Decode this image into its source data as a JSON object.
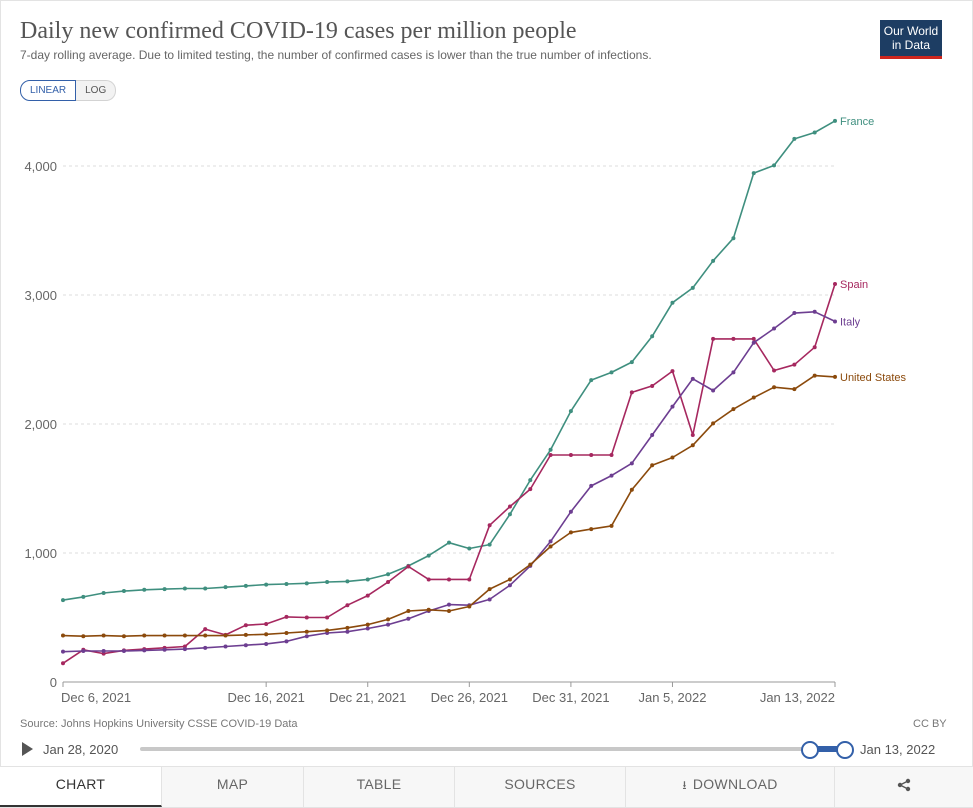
{
  "header": {
    "title": "Daily new confirmed COVID-19 cases per million people",
    "subtitle": "7-day rolling average. Due to limited testing, the number of confirmed cases is lower than the true number of infections.",
    "logo_line1": "Our World",
    "logo_line2": "in Data"
  },
  "scale_toggle": {
    "linear": "LINEAR",
    "log": "LOG",
    "selected": "LINEAR"
  },
  "chart_data": {
    "type": "line",
    "title": "Daily new confirmed COVID-19 cases per million people",
    "xlabel": "",
    "ylabel": "",
    "ylim": [
      0,
      4300
    ],
    "yticks": [
      0,
      1000,
      2000,
      3000,
      4000
    ],
    "ytick_labels": [
      "0",
      "1,000",
      "2,000",
      "3,000",
      "4,000"
    ],
    "x": [
      "Dec 6, 2021",
      "Dec 7",
      "Dec 8",
      "Dec 9",
      "Dec 10",
      "Dec 11",
      "Dec 12",
      "Dec 13",
      "Dec 14",
      "Dec 15",
      "Dec 16",
      "Dec 17",
      "Dec 18",
      "Dec 19",
      "Dec 20",
      "Dec 21",
      "Dec 22",
      "Dec 23",
      "Dec 24",
      "Dec 25",
      "Dec 26",
      "Dec 27",
      "Dec 28",
      "Dec 29",
      "Dec 30",
      "Dec 31",
      "Jan 1",
      "Jan 2",
      "Jan 3",
      "Jan 4",
      "Jan 5",
      "Jan 6",
      "Jan 7",
      "Jan 8",
      "Jan 9",
      "Jan 10",
      "Jan 11",
      "Jan 12",
      "Jan 13, 2022"
    ],
    "xtick_labels": [
      {
        "index": 0,
        "label": "Dec 6, 2021"
      },
      {
        "index": 10,
        "label": "Dec 16, 2021"
      },
      {
        "index": 15,
        "label": "Dec 21, 2021"
      },
      {
        "index": 20,
        "label": "Dec 26, 2021"
      },
      {
        "index": 25,
        "label": "Dec 31, 2021"
      },
      {
        "index": 30,
        "label": "Jan 5, 2022"
      },
      {
        "index": 38,
        "label": "Jan 13, 2022"
      }
    ],
    "series": [
      {
        "name": "France",
        "color": "#3f8f7f",
        "values": [
          635,
          660,
          690,
          705,
          715,
          720,
          725,
          725,
          735,
          745,
          755,
          760,
          765,
          775,
          780,
          795,
          835,
          900,
          980,
          1080,
          1035,
          1065,
          1300,
          1565,
          1800,
          2100,
          2340,
          2400,
          2480,
          2680,
          2940,
          3055,
          3265,
          3440,
          3945,
          4005,
          4210,
          4260,
          4350
        ]
      },
      {
        "name": "Spain",
        "color": "#a6285f",
        "values": [
          145,
          250,
          220,
          245,
          255,
          265,
          275,
          410,
          365,
          440,
          450,
          505,
          500,
          500,
          595,
          670,
          775,
          895,
          795,
          795,
          795,
          1215,
          1360,
          1495,
          1760,
          1760,
          1760,
          1760,
          2245,
          2295,
          2410,
          1915,
          2660,
          2660,
          2660,
          2415,
          2460,
          2595,
          3085
        ]
      },
      {
        "name": "Italy",
        "color": "#6d3e91",
        "values": [
          235,
          240,
          240,
          240,
          245,
          250,
          255,
          265,
          275,
          285,
          295,
          315,
          355,
          380,
          390,
          415,
          445,
          490,
          550,
          600,
          595,
          640,
          750,
          900,
          1090,
          1320,
          1520,
          1600,
          1695,
          1915,
          2135,
          2350,
          2260,
          2400,
          2630,
          2740,
          2860,
          2870,
          2795
        ]
      },
      {
        "name": "United States",
        "color": "#8b4a0c",
        "values": [
          360,
          355,
          360,
          355,
          360,
          360,
          360,
          360,
          360,
          365,
          370,
          380,
          390,
          400,
          420,
          445,
          485,
          550,
          560,
          550,
          585,
          720,
          795,
          910,
          1050,
          1160,
          1185,
          1210,
          1490,
          1680,
          1740,
          1835,
          2005,
          2115,
          2205,
          2285,
          2270,
          2375,
          2365
        ]
      }
    ]
  },
  "footer": {
    "source": "Source: Johns Hopkins University CSSE COVID-19 Data",
    "license": "CC BY"
  },
  "timeline": {
    "start_label": "Jan 28, 2020",
    "end_label": "Jan 13, 2022"
  },
  "tabs": [
    "CHART",
    "MAP",
    "TABLE",
    "SOURCES",
    "DOWNLOAD"
  ],
  "icons": {
    "play": "play-icon",
    "download": "download-icon",
    "share": "share-icon"
  },
  "colors": {
    "accent": "#3360a9",
    "logo_bg": "#1d3d63",
    "logo_bar": "#ce261e"
  }
}
